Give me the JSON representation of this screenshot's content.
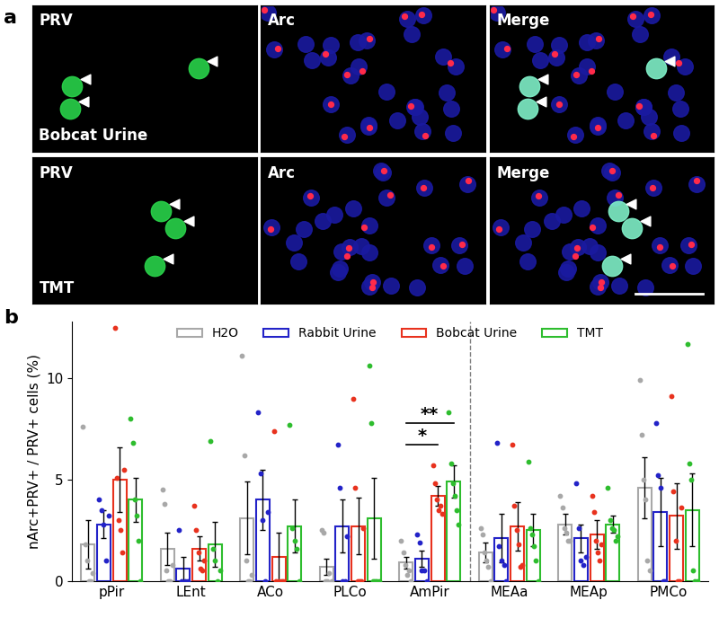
{
  "panel_a": {
    "label": "a",
    "channels": [
      "PRV",
      "Arc",
      "Merge"
    ],
    "rows": [
      "Bobcat Urine",
      "TMT"
    ]
  },
  "chart_data": {
    "type": "bar",
    "panel_label": "b",
    "y_label": "nArc+PRV+ / PRV+ cells (%)",
    "categories": [
      "pPir",
      "LEnt",
      "ACo",
      "PLCo",
      "AmPir",
      "MEAa",
      "MEAp",
      "PMCo"
    ],
    "ylim": [
      0,
      12.8
    ],
    "yticks": [
      0,
      5,
      10
    ],
    "grid": false,
    "legend": "upper center",
    "series": [
      {
        "name": "H2O",
        "color": "#a8a8a8",
        "values": [
          1.8,
          1.6,
          3.1,
          0.7,
          0.9,
          1.4,
          2.8,
          4.6
        ],
        "errors": [
          1.2,
          0.8,
          1.8,
          0.4,
          0.3,
          0.5,
          0.5,
          1.5
        ],
        "points": [
          [
            7.6,
            1.8,
            1.0,
            0,
            0,
            0.4
          ],
          [
            4.5,
            3.8,
            0.5,
            0,
            0,
            0.8
          ],
          [
            11.1,
            6.2,
            1.0,
            0,
            0,
            0.3
          ],
          [
            2.5,
            2.4,
            0,
            0,
            0.4,
            0
          ],
          [
            2.0,
            1.4,
            0.8,
            0.3,
            0.5,
            0
          ],
          [
            2.6,
            2.3,
            1.4,
            1.0,
            0.7,
            0
          ],
          [
            4.2,
            3.6,
            2.6,
            2.4,
            2.0,
            2.0
          ],
          [
            9.9,
            7.2,
            5.0,
            4.0,
            1.0,
            0.5
          ]
        ]
      },
      {
        "name": "Rabbit Urine",
        "color": "#2323c8",
        "values": [
          2.8,
          0.6,
          4.0,
          2.7,
          1.1,
          2.1,
          2.1,
          3.4
        ],
        "errors": [
          0.7,
          0.6,
          1.5,
          1.3,
          0.4,
          1.2,
          0.7,
          1.7
        ],
        "points": [
          [
            4.0,
            3.5,
            2.8,
            1.0,
            3.2
          ],
          [
            2.5,
            0,
            0,
            0
          ],
          [
            8.3,
            5.3,
            3.0,
            0,
            3.4
          ],
          [
            6.7,
            4.6,
            0,
            0,
            2.2
          ],
          [
            2.3,
            1.9,
            0.5,
            0.5,
            0
          ],
          [
            6.8,
            1.7,
            1.0,
            0.8,
            0
          ],
          [
            4.8,
            2.6,
            1.0,
            0.8,
            1.2
          ],
          [
            7.8,
            5.2,
            4.6,
            0,
            0
          ]
        ]
      },
      {
        "name": "Bobcat Urine",
        "color": "#e8321e",
        "values": [
          5.0,
          1.6,
          1.2,
          2.7,
          4.2,
          2.7,
          2.3,
          3.2
        ],
        "errors": [
          1.6,
          0.6,
          1.2,
          1.4,
          0.5,
          1.2,
          0.7,
          1.6
        ],
        "points": [
          [
            12.5,
            5.1,
            3.0,
            2.5,
            1.4,
            5.5
          ],
          [
            3.7,
            2.5,
            1.4,
            0.6,
            0.5,
            1.0
          ],
          [
            7.4,
            0,
            0,
            0,
            0
          ],
          [
            9.0,
            4.6,
            0,
            0,
            0,
            2.6
          ],
          [
            5.7,
            4.8,
            4.0,
            3.5,
            3.7,
            3.3
          ],
          [
            6.7,
            3.7,
            2.5,
            1.8,
            0.7,
            0.8
          ],
          [
            4.2,
            3.4,
            2.0,
            1.4,
            1.0,
            1.8
          ],
          [
            9.1,
            4.4,
            2.0,
            0,
            0,
            3.6
          ]
        ]
      },
      {
        "name": "TMT",
        "color": "#2ebd2e",
        "values": [
          4.0,
          1.8,
          2.7,
          3.1,
          4.9,
          2.5,
          2.8,
          3.5
        ],
        "errors": [
          1.1,
          1.1,
          1.3,
          2.0,
          0.8,
          0.8,
          0.4,
          1.8
        ],
        "points": [
          [
            8.0,
            6.8,
            4.0,
            3.2,
            2.0,
            0
          ],
          [
            6.9,
            1.6,
            1.0,
            0,
            0.5
          ],
          [
            7.7,
            2.6,
            2.0,
            1.6,
            0
          ],
          [
            10.6,
            7.8,
            0,
            0,
            0,
            0
          ],
          [
            8.3,
            5.8,
            4.8,
            4.2,
            3.5,
            2.8
          ],
          [
            5.9,
            2.6,
            2.3,
            1.7,
            1.0,
            0
          ],
          [
            4.6,
            3.0,
            2.6,
            2.5,
            2.0,
            2.2
          ],
          [
            11.7,
            5.8,
            5.0,
            0.5,
            0,
            0
          ]
        ]
      }
    ],
    "annotations": [
      {
        "text": "**",
        "category": "AmPir",
        "from": "H2O",
        "to": "TMT",
        "y": 7.8
      },
      {
        "text": "*",
        "category": "AmPir",
        "from": "H2O",
        "to": "Bobcat Urine",
        "y": 6.7
      }
    ]
  }
}
